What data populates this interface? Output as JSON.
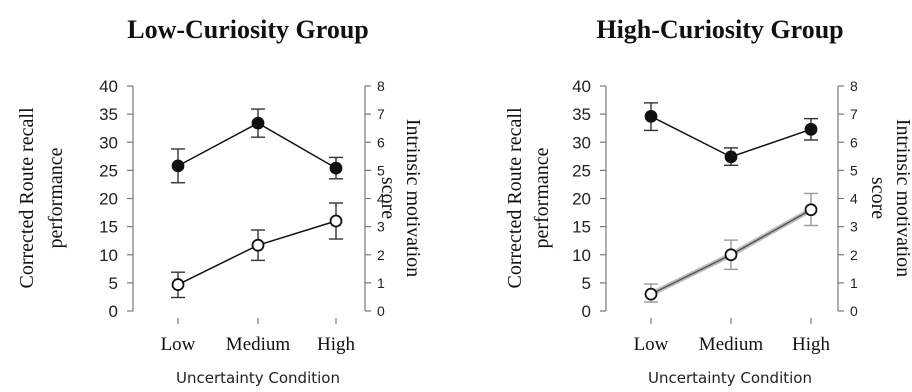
{
  "chart_data": [
    {
      "type": "line",
      "title": "Low-Curiosity Group",
      "xlabel": "Uncertainty Condition",
      "ylabel_left": "Corrected Route recall performance",
      "ylabel_right": "Intrinsic motivation score",
      "categories": [
        "Low",
        "Medium",
        "High"
      ],
      "y_left_ticks": [
        "0",
        "5",
        "10",
        "15",
        "20",
        "25",
        "30",
        "35",
        "40"
      ],
      "y_right_ticks": [
        "0",
        "1",
        "2",
        "3",
        "4",
        "5",
        "6",
        "7",
        "8"
      ],
      "ylim_left": [
        0,
        40
      ],
      "ylim_right": [
        0,
        8
      ],
      "series": [
        {
          "marker": "filled",
          "axis": "left",
          "values": [
            25.8,
            33.4,
            25.4
          ],
          "err_low": [
            22.8,
            30.9,
            23.5
          ],
          "err_high": [
            28.8,
            35.9,
            27.3
          ]
        },
        {
          "marker": "open",
          "axis": "left",
          "values": [
            4.7,
            11.7,
            16.0
          ],
          "err_low": [
            2.4,
            9.0,
            12.8
          ],
          "err_high": [
            6.9,
            14.4,
            19.2
          ]
        }
      ]
    },
    {
      "type": "line",
      "title": "High-Curiosity Group",
      "xlabel": "Uncertainty Condition",
      "ylabel_left": "Corrected Route recall performance",
      "ylabel_right": "Intrinsic motivation score",
      "categories": [
        "Low",
        "Medium",
        "High"
      ],
      "y_left_ticks": [
        "0",
        "5",
        "10",
        "15",
        "20",
        "25",
        "30",
        "35",
        "40"
      ],
      "y_right_ticks": [
        "0",
        "1",
        "2",
        "3",
        "4",
        "5",
        "6",
        "7",
        "8"
      ],
      "ylim_left": [
        0,
        40
      ],
      "ylim_right": [
        0,
        8
      ],
      "series": [
        {
          "marker": "filled",
          "axis": "left",
          "values": [
            34.6,
            27.4,
            32.3
          ],
          "err_low": [
            32.1,
            25.9,
            30.4
          ],
          "err_high": [
            37.0,
            29.0,
            34.2
          ]
        },
        {
          "marker": "open",
          "axis": "left",
          "values": [
            3.0,
            10.0,
            18.0
          ],
          "err_low": [
            1.6,
            7.4,
            15.2
          ],
          "err_high": [
            4.8,
            12.6,
            20.9
          ]
        }
      ]
    }
  ]
}
